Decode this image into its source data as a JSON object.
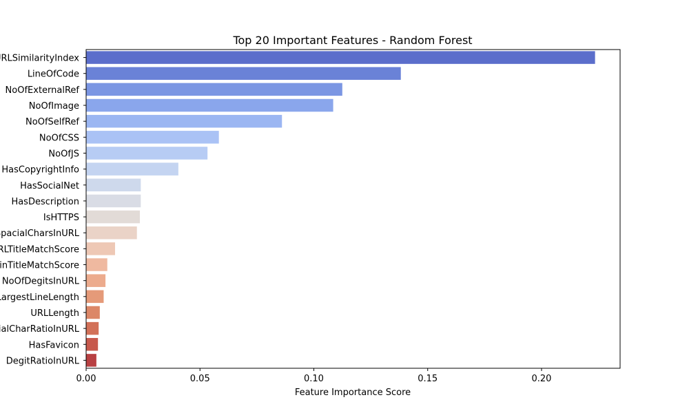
{
  "chart_data": {
    "type": "bar",
    "orientation": "horizontal",
    "title": "Top 20 Important Features - Random Forest",
    "xlabel": "Feature Importance Score",
    "ylabel": "",
    "xlim": [
      0,
      0.2345
    ],
    "xticks": [
      0.0,
      0.05,
      0.1,
      0.15,
      0.2
    ],
    "xtick_labels": [
      "0.00",
      "0.05",
      "0.10",
      "0.15",
      "0.20"
    ],
    "grid": false,
    "palette": "coolwarm",
    "categories": [
      "URLSimilarityIndex",
      "LineOfCode",
      "NoOfExternalRef",
      "NoOfImage",
      "NoOfSelfRef",
      "NoOfCSS",
      "NoOfJS",
      "HasCopyrightInfo",
      "HasSocialNet",
      "HasDescription",
      "IsHTTPS",
      "SpacialCharsInURL",
      "URLTitleMatchScore",
      "DomainTitleMatchScore",
      "NoOfDegitsInURL",
      "LargestLineLength",
      "URLLength",
      "SpacialCharRatioInURL",
      "HasFavicon",
      "DegitRatioInURL"
    ],
    "values": [
      0.2235,
      0.1382,
      0.1125,
      0.1085,
      0.086,
      0.0583,
      0.0533,
      0.0405,
      0.024,
      0.024,
      0.0236,
      0.0223,
      0.0127,
      0.0093,
      0.0085,
      0.0077,
      0.006,
      0.0055,
      0.0052,
      0.0045
    ],
    "colors": [
      "#5b6ecb",
      "#6a82d7",
      "#7b96e3",
      "#8aa6ec",
      "#9bb6f2",
      "#aac2f5",
      "#b7ccf4",
      "#c4d4f1",
      "#ced9ec",
      "#d9dce5",
      "#e2dbd7",
      "#ead3c7",
      "#eec8b5",
      "#efb9a0",
      "#ecab8d",
      "#e59a79",
      "#dc8767",
      "#d27158",
      "#c7594c",
      "#b84042"
    ]
  }
}
